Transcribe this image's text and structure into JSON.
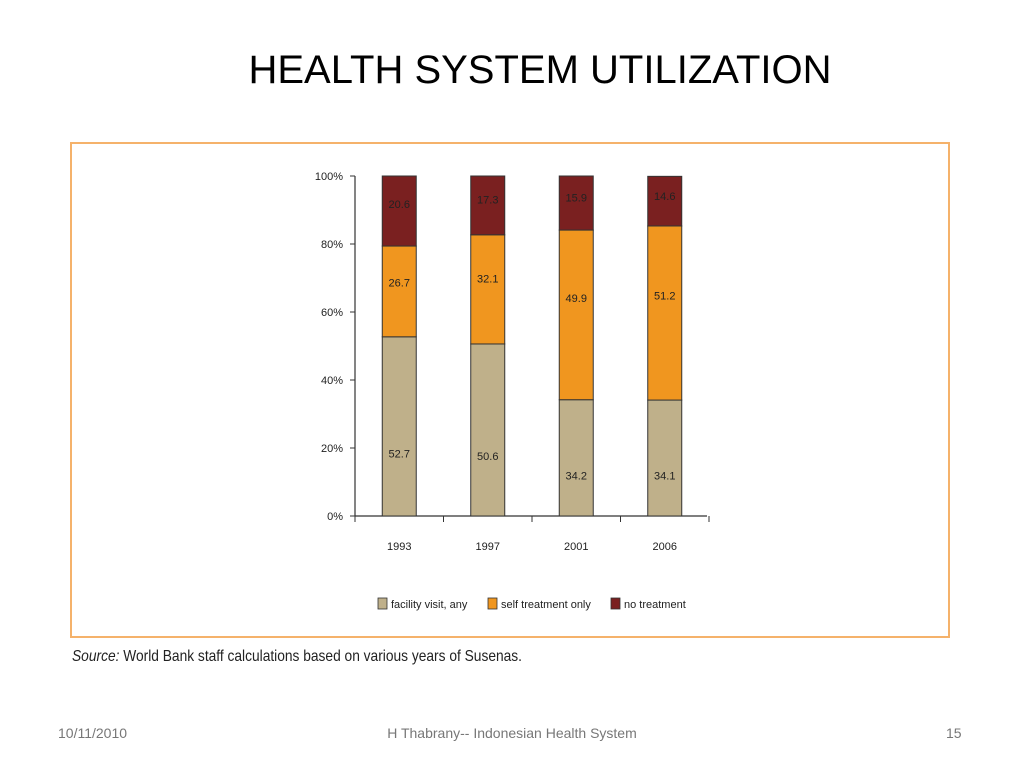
{
  "slide": {
    "title": "HEALTH SYSTEM UTILIZATION",
    "source_label": "Source:",
    "source_text": " World Bank staff calculations based on various years of Susenas.",
    "footer_date": "10/11/2010",
    "footer_center": "H Thabrany-- Indonesian Health System",
    "page_number": "15",
    "frame_color": "#f5b26b"
  },
  "chart_data": {
    "type": "bar",
    "stacked": true,
    "categories": [
      "1993",
      "1997",
      "2001",
      "2006"
    ],
    "series": [
      {
        "name": "facility visit, any",
        "color": "#bfb08a",
        "values": [
          52.7,
          50.6,
          34.2,
          34.1
        ]
      },
      {
        "name": "self treatment only",
        "color": "#f0961f",
        "values": [
          26.7,
          32.1,
          49.9,
          51.2
        ]
      },
      {
        "name": "no treatment",
        "color": "#7a2020",
        "values": [
          20.6,
          17.3,
          15.9,
          14.6
        ]
      }
    ],
    "yticks": [
      "0%",
      "20%",
      "40%",
      "60%",
      "80%",
      "100%"
    ],
    "ylim": [
      0,
      100
    ],
    "grid": false,
    "legend_position": "bottom"
  }
}
